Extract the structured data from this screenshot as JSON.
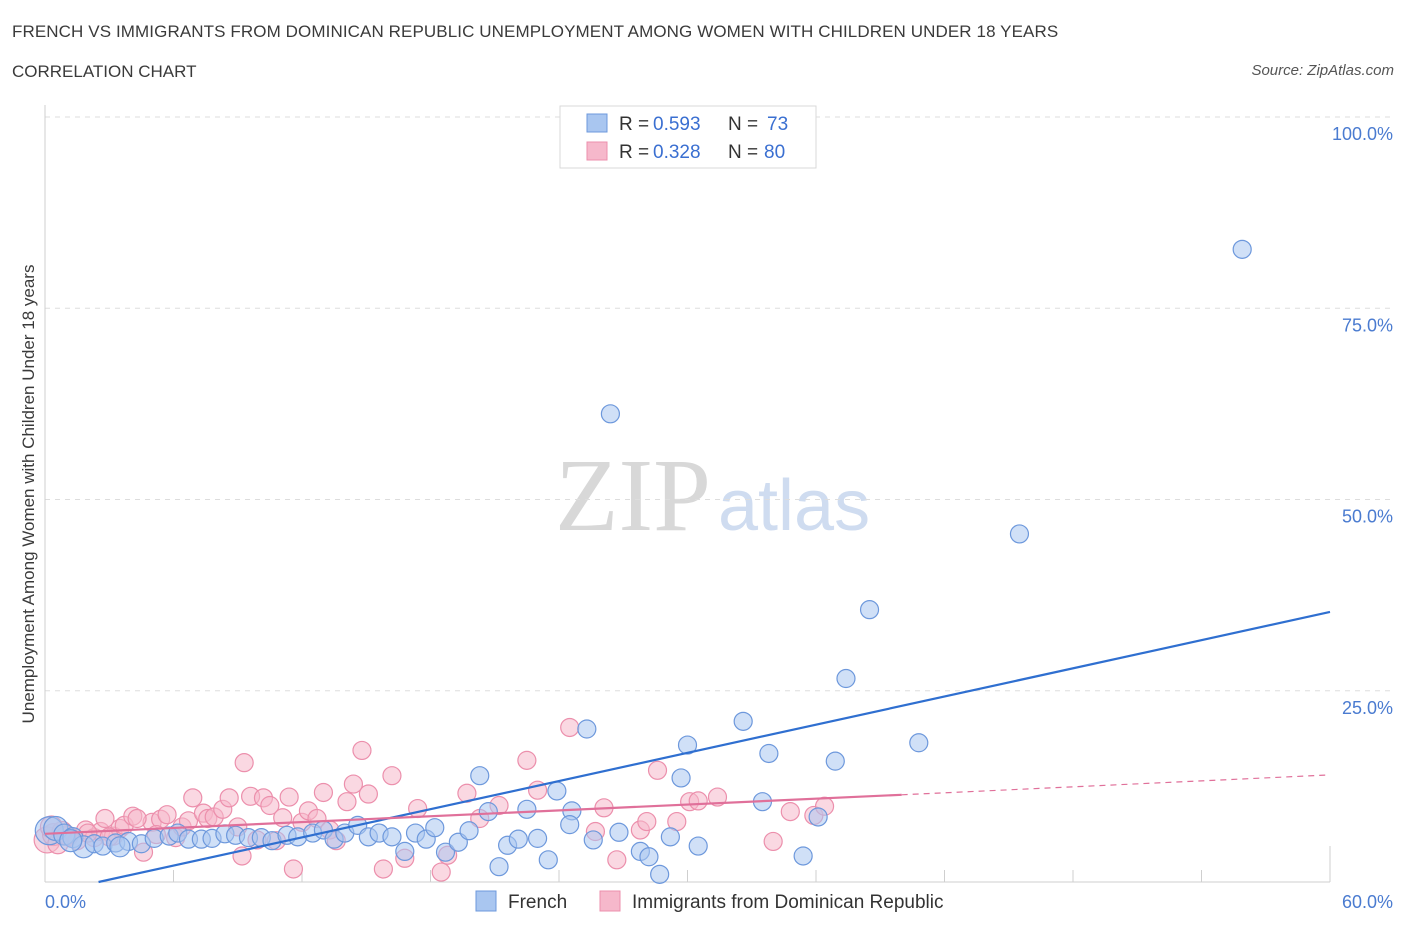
{
  "header": {
    "title": "FRENCH VS IMMIGRANTS FROM DOMINICAN REPUBLIC UNEMPLOYMENT AMONG WOMEN WITH CHILDREN UNDER 18 YEARS",
    "subtitle": "CORRELATION CHART",
    "source": "Source: ZipAtlas.com"
  },
  "watermark": {
    "zip": "ZIP",
    "atlas": "atlas"
  },
  "legend": {
    "french": {
      "r_label": "R =",
      "r_value": "0.593",
      "n_label": "N =",
      "n_value": "73"
    },
    "dominican": {
      "r_label": "R =",
      "r_value": "0.328",
      "n_label": "N =",
      "n_value": "80"
    }
  },
  "bottom_legend": {
    "french": "French",
    "dominican": "Immigrants from Dominican Republic"
  },
  "colors": {
    "french_fill": "#a9c6f0",
    "french_stroke": "#6d98dc",
    "french_line": "#2f6fd0",
    "dominican_fill": "#f6b8cb",
    "dominican_stroke": "#ec8fac",
    "dominican_line": "#e0709a",
    "axis_label": "#4a7bd0",
    "grid": "#dddddd"
  },
  "chart_data": {
    "type": "scatter",
    "title": "FRENCH VS IMMIGRANTS FROM DOMINICAN REPUBLIC UNEMPLOYMENT AMONG WOMEN WITH CHILDREN UNDER 18 YEARS",
    "xlabel": "",
    "ylabel": "Unemployment Among Women with Children Under 18 years",
    "xlim": [
      0,
      60
    ],
    "ylim": [
      0,
      100
    ],
    "x_tick_labels": [
      "0.0%",
      "60.0%"
    ],
    "y_tick_labels": [
      "100.0%",
      "75.0%",
      "50.0%",
      "25.0%"
    ],
    "y_ticks": [
      100,
      75,
      50,
      25
    ],
    "grid": true,
    "legend_position": "top-center",
    "series": [
      {
        "name": "French",
        "r": 0.593,
        "n": 73,
        "trend": {
          "x": [
            2.5,
            60
          ],
          "y": [
            0.0,
            35.3
          ]
        },
        "points": [
          [
            0.2,
            6.7
          ],
          [
            0.5,
            7.0
          ],
          [
            0.9,
            6.2
          ],
          [
            1.3,
            5.8
          ],
          [
            1.8,
            4.6
          ],
          [
            2.3,
            5.0
          ],
          [
            2.7,
            4.7
          ],
          [
            3.3,
            5.1
          ],
          [
            3.9,
            5.3
          ],
          [
            4.5,
            5.0
          ],
          [
            5.1,
            5.7
          ],
          [
            5.8,
            6.0
          ],
          [
            6.2,
            6.4
          ],
          [
            6.7,
            5.6
          ],
          [
            7.3,
            5.6
          ],
          [
            7.8,
            5.7
          ],
          [
            8.4,
            6.3
          ],
          [
            8.9,
            6.1
          ],
          [
            9.5,
            5.8
          ],
          [
            10.1,
            5.8
          ],
          [
            10.6,
            5.4
          ],
          [
            11.3,
            6.1
          ],
          [
            11.8,
            5.9
          ],
          [
            12.5,
            6.4
          ],
          [
            13.0,
            6.8
          ],
          [
            13.5,
            5.6
          ],
          [
            14.0,
            6.4
          ],
          [
            14.6,
            7.4
          ],
          [
            15.1,
            5.9
          ],
          [
            15.6,
            6.4
          ],
          [
            16.2,
            5.9
          ],
          [
            16.8,
            4.0
          ],
          [
            17.3,
            6.4
          ],
          [
            17.8,
            5.6
          ],
          [
            18.2,
            7.1
          ],
          [
            18.7,
            3.9
          ],
          [
            19.3,
            5.2
          ],
          [
            19.8,
            6.7
          ],
          [
            20.3,
            13.9
          ],
          [
            20.7,
            9.2
          ],
          [
            21.2,
            2.0
          ],
          [
            21.6,
            4.8
          ],
          [
            22.1,
            5.6
          ],
          [
            22.5,
            9.5
          ],
          [
            23.0,
            5.7
          ],
          [
            23.5,
            2.9
          ],
          [
            23.9,
            11.9
          ],
          [
            24.6,
            9.3
          ],
          [
            25.3,
            20.0
          ],
          [
            24.5,
            7.5
          ],
          [
            25.6,
            5.5
          ],
          [
            26.4,
            61.2
          ],
          [
            26.8,
            6.5
          ],
          [
            27.8,
            4.0
          ],
          [
            28.2,
            3.3
          ],
          [
            28.7,
            1.0
          ],
          [
            29.2,
            5.9
          ],
          [
            29.7,
            13.6
          ],
          [
            30.0,
            17.9
          ],
          [
            30.5,
            4.7
          ],
          [
            32.6,
            21.0
          ],
          [
            33.5,
            10.5
          ],
          [
            33.8,
            16.8
          ],
          [
            35.4,
            3.4
          ],
          [
            36.1,
            8.5
          ],
          [
            36.9,
            15.8
          ],
          [
            37.4,
            26.6
          ],
          [
            38.5,
            35.6
          ],
          [
            40.8,
            18.2
          ],
          [
            45.5,
            45.5
          ],
          [
            55.9,
            82.7
          ],
          [
            1.2,
            5.4
          ],
          [
            3.5,
            4.6
          ]
        ],
        "sizes": [
          22,
          18,
          15,
          14,
          16,
          12,
          12,
          12,
          12,
          12,
          12,
          12,
          12,
          12,
          12,
          12,
          12,
          12,
          12,
          12,
          12,
          12,
          12,
          12,
          12,
          12,
          12,
          12,
          12,
          12,
          12,
          12,
          12,
          12,
          12,
          12,
          12,
          12,
          12,
          12,
          12,
          12,
          12,
          12,
          12,
          12,
          12,
          12,
          12,
          12,
          12,
          12,
          12,
          12,
          12,
          12,
          12,
          12,
          12,
          12,
          12,
          12,
          12,
          12,
          12,
          12,
          12,
          12,
          12,
          12,
          12,
          16,
          14
        ]
      },
      {
        "name": "Immigrants from Dominican Republic",
        "r": 0.328,
        "n": 80,
        "trend": {
          "x": [
            0,
            40
          ],
          "y": [
            6.3,
            11.4
          ],
          "dashed_to": {
            "x": 60,
            "y": 14.0
          }
        },
        "points": [
          [
            0.1,
            5.5
          ],
          [
            0.4,
            6.2
          ],
          [
            0.8,
            6.6
          ],
          [
            1.1,
            6.0
          ],
          [
            1.5,
            5.4
          ],
          [
            1.9,
            6.8
          ],
          [
            2.3,
            5.8
          ],
          [
            2.6,
            6.6
          ],
          [
            2.8,
            8.3
          ],
          [
            3.2,
            6.0
          ],
          [
            3.5,
            7.0
          ],
          [
            3.7,
            7.4
          ],
          [
            4.1,
            8.6
          ],
          [
            4.6,
            3.9
          ],
          [
            5.0,
            7.8
          ],
          [
            5.4,
            8.2
          ],
          [
            5.7,
            8.8
          ],
          [
            6.1,
            5.8
          ],
          [
            6.4,
            7.2
          ],
          [
            6.7,
            8.0
          ],
          [
            6.9,
            11.0
          ],
          [
            7.4,
            9.0
          ],
          [
            7.6,
            8.3
          ],
          [
            7.9,
            8.5
          ],
          [
            8.3,
            9.5
          ],
          [
            8.6,
            11.0
          ],
          [
            9.0,
            7.2
          ],
          [
            9.2,
            3.4
          ],
          [
            9.3,
            15.6
          ],
          [
            9.6,
            11.2
          ],
          [
            9.9,
            5.5
          ],
          [
            10.2,
            11.0
          ],
          [
            10.5,
            10.0
          ],
          [
            10.8,
            5.4
          ],
          [
            11.1,
            8.4
          ],
          [
            11.4,
            11.1
          ],
          [
            11.6,
            1.7
          ],
          [
            12.0,
            7.8
          ],
          [
            12.3,
            9.3
          ],
          [
            12.7,
            8.3
          ],
          [
            13.0,
            11.7
          ],
          [
            13.3,
            6.8
          ],
          [
            13.6,
            5.4
          ],
          [
            14.1,
            10.5
          ],
          [
            14.4,
            12.8
          ],
          [
            14.8,
            17.2
          ],
          [
            15.1,
            11.5
          ],
          [
            15.8,
            1.7
          ],
          [
            16.2,
            13.9
          ],
          [
            16.8,
            3.1
          ],
          [
            17.4,
            9.6
          ],
          [
            18.5,
            1.3
          ],
          [
            18.8,
            3.5
          ],
          [
            19.7,
            11.6
          ],
          [
            20.3,
            8.3
          ],
          [
            21.2,
            10.0
          ],
          [
            22.5,
            15.9
          ],
          [
            23.0,
            12.0
          ],
          [
            24.5,
            20.2
          ],
          [
            25.7,
            6.6
          ],
          [
            26.1,
            9.7
          ],
          [
            26.7,
            2.9
          ],
          [
            27.8,
            6.8
          ],
          [
            28.1,
            7.9
          ],
          [
            28.6,
            14.6
          ],
          [
            29.5,
            7.9
          ],
          [
            30.1,
            10.5
          ],
          [
            30.5,
            10.6
          ],
          [
            31.4,
            11.1
          ],
          [
            34.0,
            5.3
          ],
          [
            34.8,
            9.2
          ],
          [
            35.9,
            8.7
          ],
          [
            36.4,
            9.9
          ],
          [
            0.3,
            7.2
          ],
          [
            0.6,
            5.0
          ],
          [
            1.0,
            6.1
          ],
          [
            2.0,
            6.4
          ],
          [
            4.3,
            8.3
          ],
          [
            5.2,
            6.2
          ],
          [
            3.0,
            5.9
          ]
        ],
        "sizes": [
          20,
          16,
          14,
          13,
          12,
          12,
          12,
          12,
          12,
          12,
          12,
          12,
          12,
          12,
          12,
          12,
          12,
          12,
          12,
          12,
          12,
          12,
          12,
          12,
          12,
          12,
          12,
          12,
          12,
          12,
          12,
          12,
          12,
          12,
          12,
          12,
          12,
          12,
          12,
          12,
          12,
          12,
          12,
          12,
          12,
          12,
          12,
          12,
          12,
          12,
          12,
          12,
          12,
          12,
          12,
          12,
          12,
          12,
          12,
          12,
          12,
          12,
          12,
          12,
          12,
          12,
          12,
          12,
          12,
          12,
          12,
          12,
          12,
          16,
          14,
          13,
          12,
          12,
          12,
          12
        ]
      }
    ]
  }
}
